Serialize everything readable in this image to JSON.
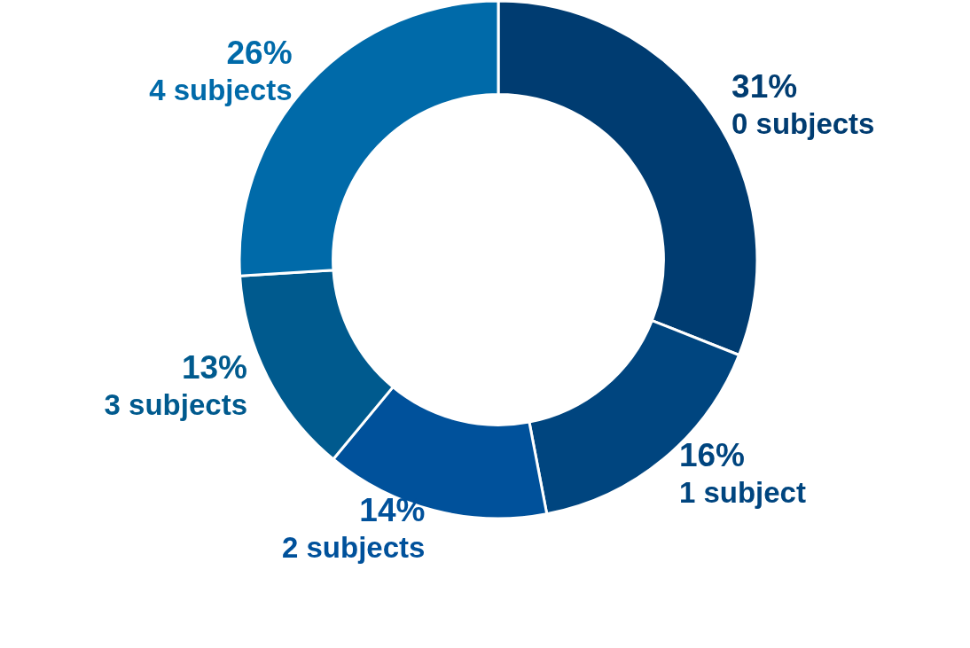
{
  "chart_data": {
    "type": "donut",
    "categories": [
      "0 subjects",
      "1 subject",
      "2 subjects",
      "3 subjects",
      "4 subjects"
    ],
    "values": [
      31,
      16,
      14,
      13,
      26
    ],
    "colors": [
      "#003c71",
      "#00457f",
      "#00519b",
      "#005a8e",
      "#006aa9"
    ],
    "value_labels": [
      "31%",
      "16%",
      "14%",
      "13%",
      "26%"
    ],
    "legend": false
  }
}
